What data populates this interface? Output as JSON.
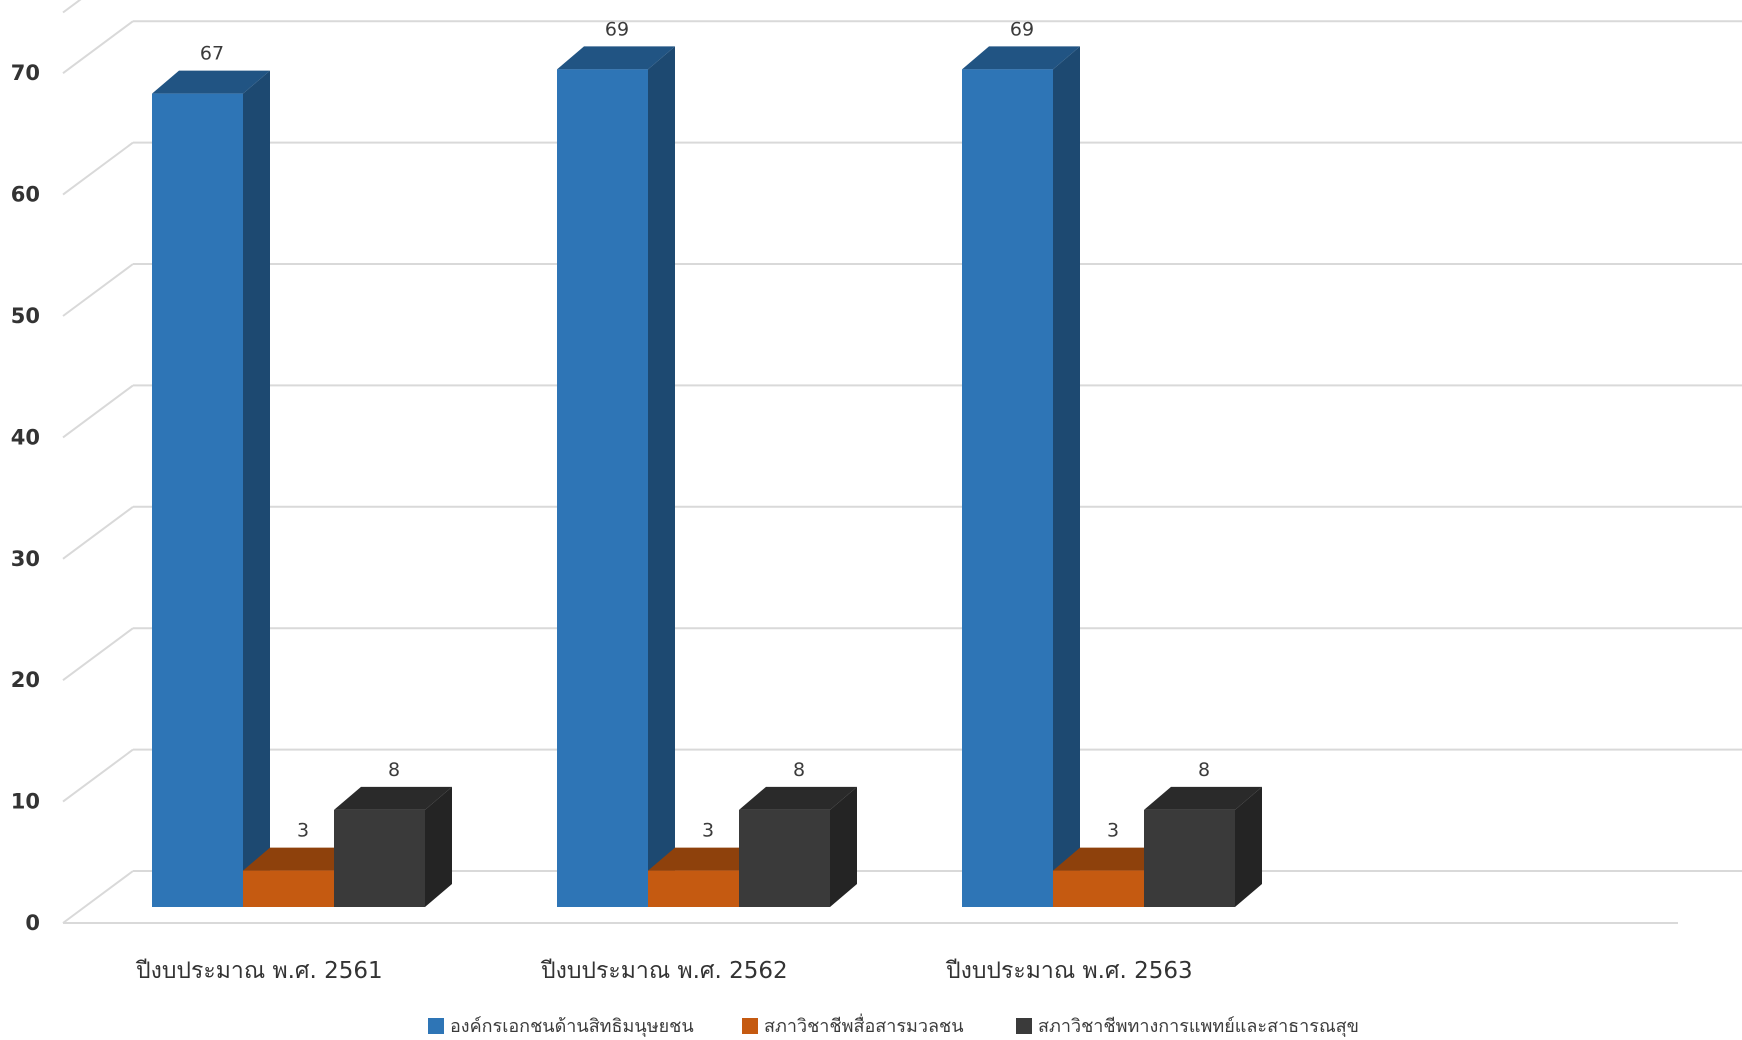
{
  "chart_data": {
    "type": "bar",
    "categories": [
      "ปีงบประมาณ พ.ศ. 2561",
      "ปีงบประมาณ พ.ศ. 2562",
      "ปีงบประมาณ พ.ศ. 2563"
    ],
    "series": [
      {
        "name": "องค์กรเอกชนด้านสิทธิมนุษยชน",
        "values": [
          67,
          69,
          69
        ],
        "color": "#2e75b6"
      },
      {
        "name": "สภาวิชาชีพสื่อสารมวลชน",
        "values": [
          3,
          3,
          3
        ],
        "color": "#c55a11"
      },
      {
        "name": "สภาวิชาชีพทางการแพทย์และสาธารณสุข",
        "values": [
          8,
          8,
          8
        ],
        "color": "#3a3a3a"
      }
    ],
    "yticks": [
      0,
      10,
      20,
      30,
      40,
      50,
      60,
      70
    ],
    "ylim": [
      0,
      75
    ],
    "grid": true,
    "legend_position": "bottom",
    "title": "",
    "xlabel": "",
    "ylabel": "",
    "style": "3d-column"
  }
}
